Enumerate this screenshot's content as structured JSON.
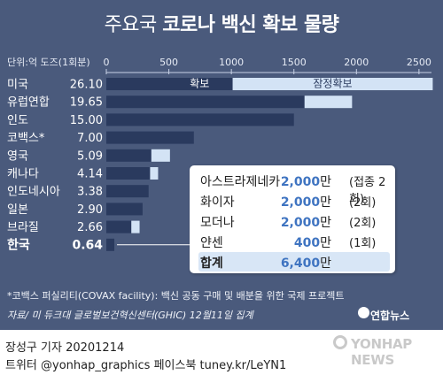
{
  "title": {
    "part1": "주요국 ",
    "part2": "코로나 백신 확보 물량"
  },
  "unit_label": "단위:억 도즈(1회분)",
  "chart_data": {
    "type": "bar",
    "x_ticks": [
      "0",
      "500",
      "1000",
      "1500",
      "2000",
      "2500"
    ],
    "xlim": [
      0,
      2600
    ],
    "series_labels": {
      "secured": "확보",
      "potential": "잠정확보"
    },
    "rows": [
      {
        "country": "미국",
        "value": "26.10",
        "secured": 1010,
        "potential": 1600
      },
      {
        "country": "유럽연합",
        "value": "19.65",
        "secured": 1585,
        "potential": 380
      },
      {
        "country": "인도",
        "value": "15.00",
        "secured": 1500,
        "potential": 0
      },
      {
        "country": "코백스*",
        "value": "7.00",
        "secured": 700,
        "potential": 0
      },
      {
        "country": "영국",
        "value": "5.09",
        "secured": 360,
        "potential": 149
      },
      {
        "country": "캐나다",
        "value": "4.14",
        "secured": 350,
        "potential": 64
      },
      {
        "country": "인도네시아",
        "value": "3.38",
        "secured": 338,
        "potential": 0
      },
      {
        "country": "일본",
        "value": "2.90",
        "secured": 290,
        "potential": 0
      },
      {
        "country": "브라질",
        "value": "2.66",
        "secured": 200,
        "potential": 66
      },
      {
        "country": "한국",
        "value": "0.64",
        "secured": 64,
        "potential": 0
      }
    ]
  },
  "korea_breakdown": [
    {
      "name": "아스트라제네카",
      "amount": "2,000",
      "unit": "만",
      "note": "(접종 2회)"
    },
    {
      "name": "화이자",
      "amount": "2,000",
      "unit": "만",
      "note": "(2회)"
    },
    {
      "name": "모더나",
      "amount": "2,000",
      "unit": "만",
      "note": "(2회)"
    },
    {
      "name": "얀센",
      "amount": "400",
      "unit": "만",
      "note": "(1회)"
    },
    {
      "name": "합계",
      "amount": "6,400",
      "unit": "만",
      "note": ""
    }
  ],
  "footnote1": "*코백스 퍼실리티(COVAX facility): 백신 공동 구매 및 배분을 위한 국제 프로젝트",
  "footnote2": "자료/ 미 듀크대 글로벌보건혁신센터(GHIC) 12월11일 집계",
  "brand": "연합뉴스",
  "credit1": "장성구 기자  20201214",
  "credit2": "트위터 @yonhap_graphics  페이스북 tuney.kr/LeYN1",
  "logo": "YONHAP NEWS",
  "colors": {
    "panel": "#4a5a7c",
    "secured": "#2a3a5e",
    "potential": "#d3e3f5",
    "highlight": "#d8e6f6"
  }
}
